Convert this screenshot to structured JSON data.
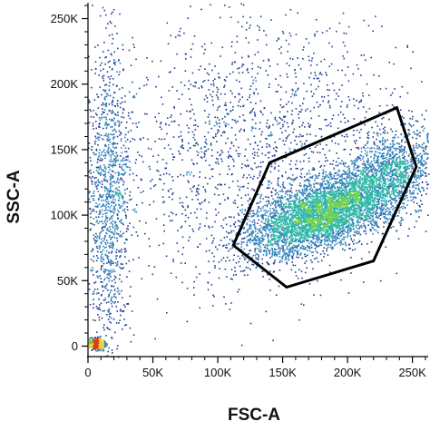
{
  "chart_data": {
    "type": "scatter",
    "style": "pseudocolor density dot plot",
    "xlabel": "FSC-A",
    "ylabel": "SSC-A",
    "xlim": [
      0,
      262144
    ],
    "ylim": [
      -8000,
      262144
    ],
    "x_ticks": [
      {
        "value": 0,
        "label": "0"
      },
      {
        "value": 50000,
        "label": "50K"
      },
      {
        "value": 100000,
        "label": "100K"
      },
      {
        "value": 150000,
        "label": "150K"
      },
      {
        "value": 200000,
        "label": "200K"
      },
      {
        "value": 250000,
        "label": "250K"
      }
    ],
    "y_ticks": [
      {
        "value": 0,
        "label": "0"
      },
      {
        "value": 50000,
        "label": "50K"
      },
      {
        "value": 100000,
        "label": "100K"
      },
      {
        "value": 150000,
        "label": "150K"
      },
      {
        "value": 200000,
        "label": "200K"
      },
      {
        "value": 250000,
        "label": "250K"
      }
    ],
    "grid": false,
    "density_colors": [
      "#1f3f8f",
      "#2f7fb8",
      "#2eb6a8",
      "#6fcf4f",
      "#e8d43a",
      "#f08a24",
      "#e03a1c"
    ],
    "populations": [
      {
        "center_x": 183000,
        "center_y": 103000,
        "spread_x": 30000,
        "spread_y": 17000,
        "correlation": 0.6,
        "weight": 0.5
      },
      {
        "center_x": 235000,
        "center_y": 135000,
        "spread_x": 18000,
        "spread_y": 18000,
        "correlation": 0.3,
        "weight": 0.12
      },
      {
        "center_x": 130000,
        "center_y": 150000,
        "spread_x": 60000,
        "spread_y": 50000,
        "correlation": 0.1,
        "weight": 0.2
      },
      {
        "center_x": 15000,
        "center_y": 110000,
        "spread_x": 8000,
        "spread_y": 60000,
        "correlation": 0.0,
        "weight": 0.13
      },
      {
        "center_x": 6000,
        "center_y": 2000,
        "spread_x": 3000,
        "spread_y": 2000,
        "correlation": 0.0,
        "weight": 0.05
      }
    ],
    "gate_polygon": [
      {
        "x": 140000,
        "y": 140000
      },
      {
        "x": 238000,
        "y": 182000
      },
      {
        "x": 253000,
        "y": 137000
      },
      {
        "x": 220000,
        "y": 65000
      },
      {
        "x": 153000,
        "y": 45000
      },
      {
        "x": 112000,
        "y": 77000
      }
    ]
  }
}
